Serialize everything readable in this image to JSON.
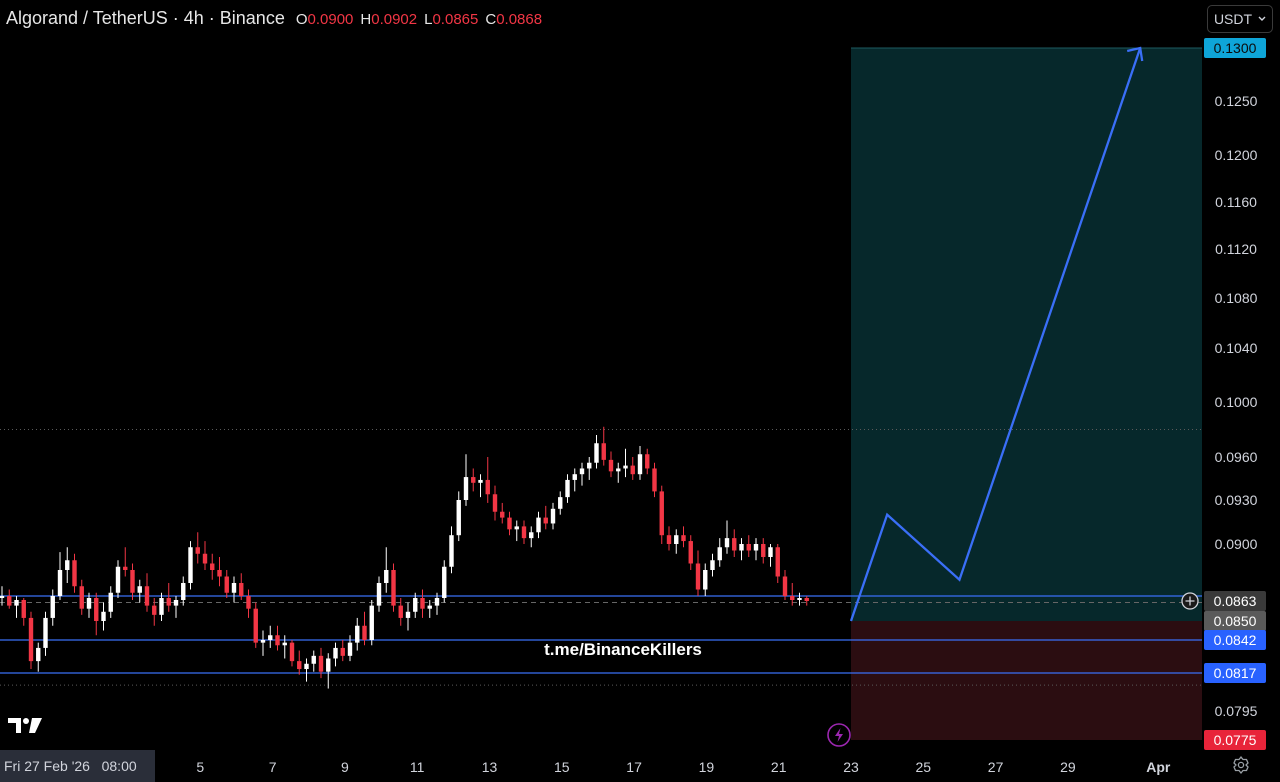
{
  "header": {
    "title": "Algorand / TetherUS · 4h · Binance",
    "ohlc": [
      {
        "label": "O",
        "value": "0.0900"
      },
      {
        "label": "H",
        "value": "0.0902"
      },
      {
        "label": "L",
        "value": "0.0865"
      },
      {
        "label": "C",
        "value": "0.0868"
      }
    ]
  },
  "currency_label": "USDT",
  "crosshair_date": "Fri 27 Feb '26   08:00",
  "watermark": "t.me/BinanceKillers",
  "colors": {
    "background": "#000000",
    "up": "#ffffff",
    "down": "#f23645",
    "line": "#3a6ff7",
    "profit_zone": "#06282b",
    "loss_zone": "#2b0d11",
    "target_tag": "#0ea5d8",
    "stop_tag": "#e8243a",
    "level_tag": "#2962ff",
    "price_tag": "#3a3a3a",
    "entry_tag": "#5a5a5a"
  },
  "chart_data": {
    "type": "candlestick",
    "price_axis": {
      "ticks": [
        "0.1250",
        "0.1200",
        "0.1160",
        "0.1120",
        "0.1080",
        "0.1040",
        "0.1000",
        "0.0960",
        "0.0930",
        "0.0900",
        "0.0795"
      ]
    },
    "time_axis": {
      "ticks": [
        "5",
        "7",
        "9",
        "11",
        "13",
        "15",
        "17",
        "19",
        "21",
        "23",
        "25",
        "27",
        "29",
        "Apr"
      ]
    },
    "tags": {
      "target": "0.1300",
      "current": "0.0863",
      "entry": "0.0850",
      "level_1": "0.0842",
      "level_2": "0.0817",
      "stop": "0.0775"
    },
    "horizontal_levels": [
      0.0868,
      0.0842,
      0.0817
    ],
    "dotted_levels": [
      0.098,
      0.081
    ],
    "position": {
      "entry": 0.085,
      "target": 0.13,
      "stop": 0.0775
    },
    "projection_path": [
      {
        "date": "Mar 23",
        "price": 0.085
      },
      {
        "date": "Mar 24",
        "price": 0.092
      },
      {
        "date": "Mar 26",
        "price": 0.0878
      },
      {
        "date": "Mar 31",
        "price": 0.13
      }
    ],
    "candles": [
      [
        0.0866,
        0.0874,
        0.086,
        0.0868
      ],
      [
        0.0868,
        0.0872,
        0.0858,
        0.086
      ],
      [
        0.086,
        0.0868,
        0.0852,
        0.0864
      ],
      [
        0.0864,
        0.0866,
        0.0848,
        0.0852
      ],
      [
        0.0852,
        0.0856,
        0.082,
        0.0826
      ],
      [
        0.0826,
        0.084,
        0.0818,
        0.0836
      ],
      [
        0.0836,
        0.0856,
        0.083,
        0.0852
      ],
      [
        0.0852,
        0.0872,
        0.0848,
        0.0868
      ],
      [
        0.0868,
        0.0895,
        0.0864,
        0.0884
      ],
      [
        0.0884,
        0.0898,
        0.0876,
        0.089
      ],
      [
        0.089,
        0.0894,
        0.087,
        0.0874
      ],
      [
        0.0874,
        0.0878,
        0.0854,
        0.0858
      ],
      [
        0.0858,
        0.087,
        0.0852,
        0.0866
      ],
      [
        0.0866,
        0.087,
        0.0844,
        0.085
      ],
      [
        0.085,
        0.0862,
        0.0846,
        0.0856
      ],
      [
        0.0856,
        0.0874,
        0.0852,
        0.087
      ],
      [
        0.087,
        0.089,
        0.0866,
        0.0886
      ],
      [
        0.0886,
        0.0898,
        0.088,
        0.0884
      ],
      [
        0.0884,
        0.0888,
        0.0864,
        0.087
      ],
      [
        0.087,
        0.0878,
        0.0862,
        0.0874
      ],
      [
        0.0874,
        0.0882,
        0.0856,
        0.086
      ],
      [
        0.086,
        0.0866,
        0.0848,
        0.0854
      ],
      [
        0.0854,
        0.087,
        0.085,
        0.0866
      ],
      [
        0.0866,
        0.0876,
        0.0856,
        0.086
      ],
      [
        0.086,
        0.0868,
        0.0852,
        0.0864
      ],
      [
        0.0864,
        0.088,
        0.086,
        0.0876
      ],
      [
        0.0876,
        0.0902,
        0.0872,
        0.0898
      ],
      [
        0.0898,
        0.0908,
        0.0888,
        0.0894
      ],
      [
        0.0894,
        0.0902,
        0.0884,
        0.0888
      ],
      [
        0.0888,
        0.0894,
        0.0878,
        0.0884
      ],
      [
        0.0884,
        0.0892,
        0.0874,
        0.088
      ],
      [
        0.088,
        0.0884,
        0.0866,
        0.087
      ],
      [
        0.087,
        0.088,
        0.0862,
        0.0876
      ],
      [
        0.0876,
        0.0882,
        0.0864,
        0.0868
      ],
      [
        0.0868,
        0.0872,
        0.0852,
        0.0858
      ],
      [
        0.0858,
        0.0862,
        0.0836,
        0.084
      ],
      [
        0.084,
        0.0846,
        0.083,
        0.0842
      ],
      [
        0.0842,
        0.0848,
        0.0836,
        0.0844
      ],
      [
        0.0844,
        0.0848,
        0.0834,
        0.0838
      ],
      [
        0.0838,
        0.0844,
        0.0828,
        0.084
      ],
      [
        0.084,
        0.0842,
        0.0822,
        0.0826
      ],
      [
        0.0826,
        0.0834,
        0.0816,
        0.082
      ],
      [
        0.082,
        0.0828,
        0.0812,
        0.0824
      ],
      [
        0.0824,
        0.0834,
        0.0818,
        0.083
      ],
      [
        0.083,
        0.0836,
        0.0814,
        0.0818
      ],
      [
        0.0818,
        0.0832,
        0.0808,
        0.0828
      ],
      [
        0.0828,
        0.084,
        0.0822,
        0.0836
      ],
      [
        0.0836,
        0.0842,
        0.0826,
        0.083
      ],
      [
        0.083,
        0.0844,
        0.0826,
        0.084
      ],
      [
        0.084,
        0.0852,
        0.0834,
        0.0848
      ],
      [
        0.0848,
        0.0856,
        0.0838,
        0.0842
      ],
      [
        0.0842,
        0.0864,
        0.0838,
        0.086
      ],
      [
        0.086,
        0.088,
        0.0856,
        0.0876
      ],
      [
        0.0876,
        0.0898,
        0.087,
        0.0884
      ],
      [
        0.0884,
        0.0888,
        0.0856,
        0.086
      ],
      [
        0.086,
        0.0866,
        0.0848,
        0.0852
      ],
      [
        0.0852,
        0.0862,
        0.0846,
        0.0856
      ],
      [
        0.0856,
        0.087,
        0.0852,
        0.0866
      ],
      [
        0.0866,
        0.0872,
        0.0852,
        0.0858
      ],
      [
        0.0858,
        0.0864,
        0.0852,
        0.086
      ],
      [
        0.086,
        0.087,
        0.0854,
        0.0866
      ],
      [
        0.0866,
        0.089,
        0.0862,
        0.0886
      ],
      [
        0.0886,
        0.0912,
        0.0882,
        0.0906
      ],
      [
        0.0906,
        0.0936,
        0.0902,
        0.093
      ],
      [
        0.093,
        0.0962,
        0.0926,
        0.0946
      ],
      [
        0.0946,
        0.0952,
        0.0936,
        0.0942
      ],
      [
        0.0942,
        0.0948,
        0.0932,
        0.0944
      ],
      [
        0.0944,
        0.096,
        0.0928,
        0.0934
      ],
      [
        0.0934,
        0.094,
        0.0916,
        0.0922
      ],
      [
        0.0922,
        0.0928,
        0.0914,
        0.0918
      ],
      [
        0.0918,
        0.0922,
        0.0906,
        0.091
      ],
      [
        0.091,
        0.0916,
        0.0902,
        0.0912
      ],
      [
        0.0912,
        0.0916,
        0.09,
        0.0904
      ],
      [
        0.0904,
        0.0912,
        0.0898,
        0.0908
      ],
      [
        0.0908,
        0.0922,
        0.0904,
        0.0918
      ],
      [
        0.0918,
        0.0926,
        0.091,
        0.0914
      ],
      [
        0.0914,
        0.0928,
        0.091,
        0.0924
      ],
      [
        0.0924,
        0.0936,
        0.092,
        0.0932
      ],
      [
        0.0932,
        0.0948,
        0.0928,
        0.0944
      ],
      [
        0.0944,
        0.0952,
        0.0936,
        0.0948
      ],
      [
        0.0948,
        0.0956,
        0.094,
        0.0952
      ],
      [
        0.0952,
        0.096,
        0.0944,
        0.0956
      ],
      [
        0.0956,
        0.0976,
        0.0952,
        0.097
      ],
      [
        0.097,
        0.0982,
        0.0954,
        0.0958
      ],
      [
        0.0958,
        0.0964,
        0.0946,
        0.095
      ],
      [
        0.095,
        0.0956,
        0.0942,
        0.0952
      ],
      [
        0.0952,
        0.0966,
        0.0946,
        0.0954
      ],
      [
        0.0954,
        0.096,
        0.0944,
        0.0948
      ],
      [
        0.0948,
        0.0968,
        0.0944,
        0.0962
      ],
      [
        0.0962,
        0.0966,
        0.0948,
        0.0952
      ],
      [
        0.0952,
        0.0956,
        0.0932,
        0.0936
      ],
      [
        0.0936,
        0.094,
        0.09,
        0.0906
      ],
      [
        0.0906,
        0.0912,
        0.0896,
        0.09
      ],
      [
        0.09,
        0.091,
        0.0894,
        0.0906
      ],
      [
        0.0906,
        0.0912,
        0.0898,
        0.0902
      ],
      [
        0.0902,
        0.0906,
        0.0884,
        0.0888
      ],
      [
        0.0888,
        0.0896,
        0.0868,
        0.0872
      ],
      [
        0.0872,
        0.0888,
        0.0868,
        0.0884
      ],
      [
        0.0884,
        0.0894,
        0.088,
        0.089
      ],
      [
        0.089,
        0.0904,
        0.0886,
        0.0898
      ],
      [
        0.0898,
        0.0916,
        0.0894,
        0.0904
      ],
      [
        0.0904,
        0.091,
        0.0892,
        0.0896
      ],
      [
        0.0896,
        0.0904,
        0.089,
        0.09
      ],
      [
        0.09,
        0.0906,
        0.0892,
        0.0896
      ],
      [
        0.0896,
        0.0904,
        0.089,
        0.09
      ],
      [
        0.09,
        0.0904,
        0.0888,
        0.0892
      ],
      [
        0.0892,
        0.09,
        0.0886,
        0.0898
      ],
      [
        0.0898,
        0.09,
        0.0876,
        0.088
      ],
      [
        0.088,
        0.0884,
        0.0864,
        0.0868
      ],
      [
        0.0868,
        0.0876,
        0.086,
        0.0864
      ],
      [
        0.0864,
        0.087,
        0.086,
        0.0866
      ],
      [
        0.0866,
        0.0868,
        0.086,
        0.0863
      ]
    ]
  }
}
